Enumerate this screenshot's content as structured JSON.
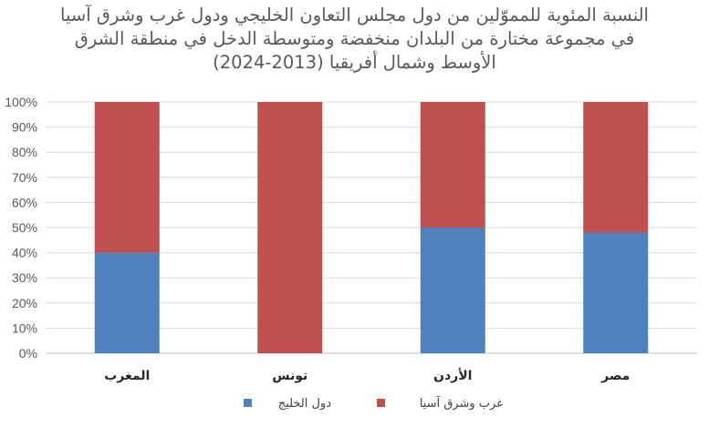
{
  "chart_data": {
    "type": "bar",
    "stacked": true,
    "percent": true,
    "title_lines": [
      "النسبة المئوية للمموّلين من دول مجلس التعاون الخليجي ودول غرب وشرق آسيا",
      "في مجموعة مختارة من البلدان منخفضة ومتوسطة الدخل في منطقة الشرق",
      "الأوسط وشمال أفريقيا (2013-2024)"
    ],
    "categories": [
      "المغرب",
      "تونس",
      "الأردن",
      "مصر"
    ],
    "series": [
      {
        "name": "دول الخليج",
        "color": "#4f81bd",
        "values": [
          40,
          0,
          50,
          48
        ]
      },
      {
        "name": "غرب وشرق آسيا",
        "color": "#c0504d",
        "values": [
          60,
          100,
          50,
          52
        ]
      }
    ],
    "y_ticks": [
      "0%",
      "10%",
      "20%",
      "30%",
      "40%",
      "50%",
      "60%",
      "70%",
      "80%",
      "90%",
      "100%"
    ],
    "ylim": [
      0,
      100
    ],
    "grid": true,
    "legend_position": "bottom"
  }
}
